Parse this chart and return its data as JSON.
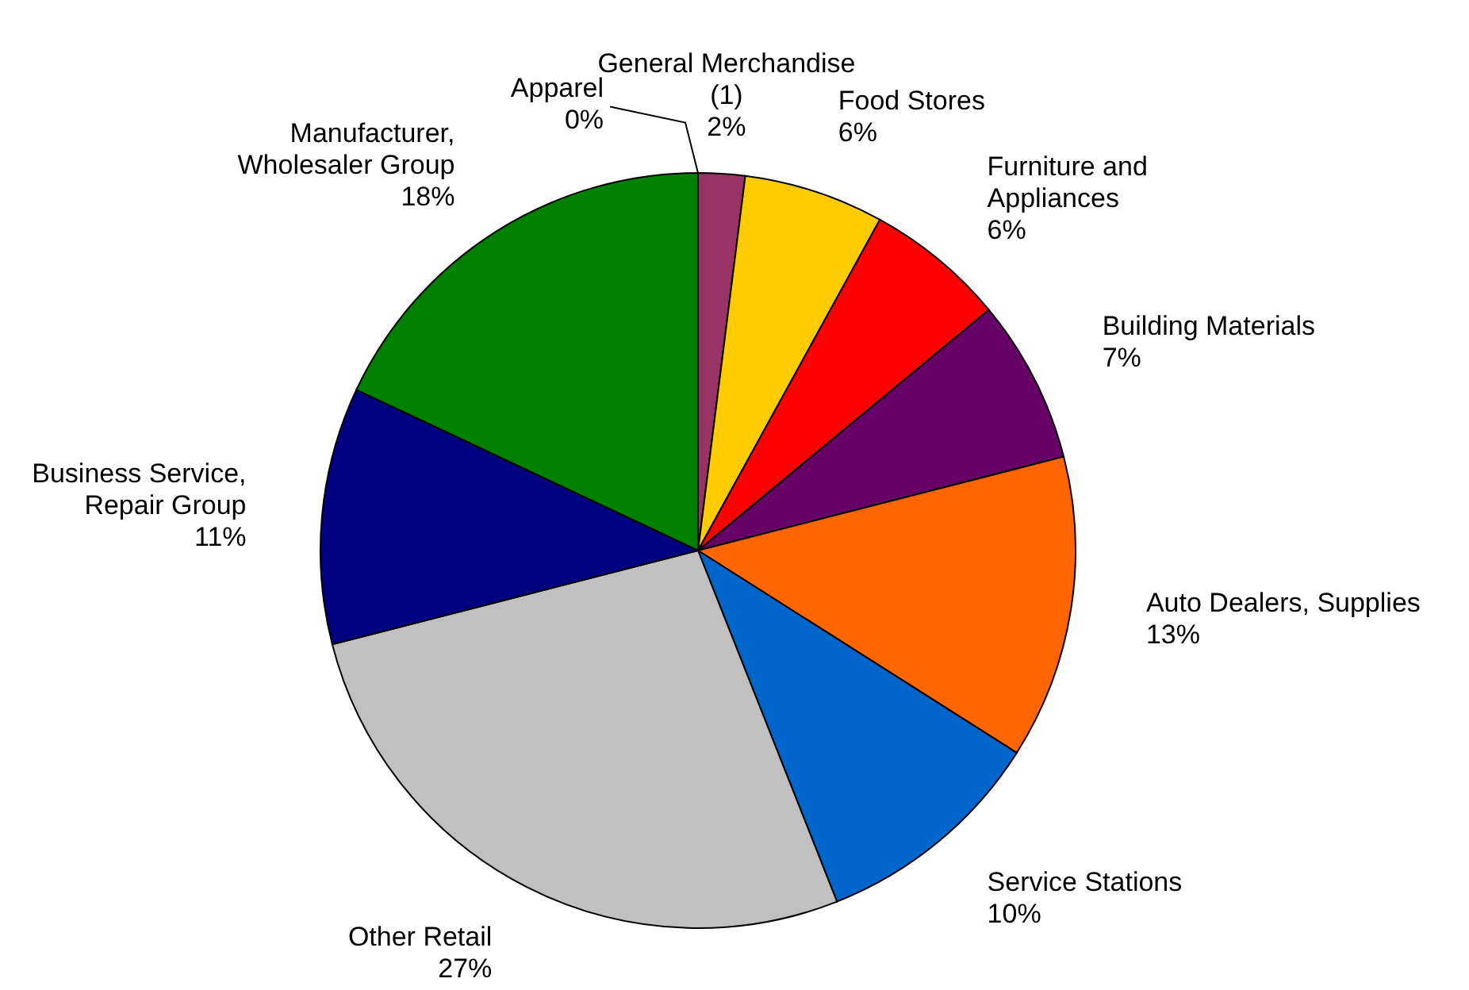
{
  "chart_data": {
    "type": "pie",
    "categories": [
      "Apparel",
      "General Merchandise\n(1)",
      "Food Stores",
      "Furniture and\nAppliances",
      "Building Materials",
      "Auto Dealers, Supplies",
      "Service Stations",
      "Other Retail",
      "Business Service,\nRepair Group",
      "Manufacturer,\nWholesaler Group"
    ],
    "values": [
      0,
      2,
      6,
      6,
      7,
      13,
      10,
      27,
      11,
      18
    ],
    "colors": [
      "#9999ff",
      "#993366",
      "#ffcc00",
      "#ff0000",
      "#660066",
      "#ff6600",
      "#0066cc",
      "#c0c0c0",
      "#000080",
      "#008000"
    ],
    "value_labels": [
      "0%",
      "2%",
      "6%",
      "6%",
      "7%",
      "13%",
      "10%",
      "27%",
      "11%",
      "18%"
    ],
    "legend": false
  }
}
